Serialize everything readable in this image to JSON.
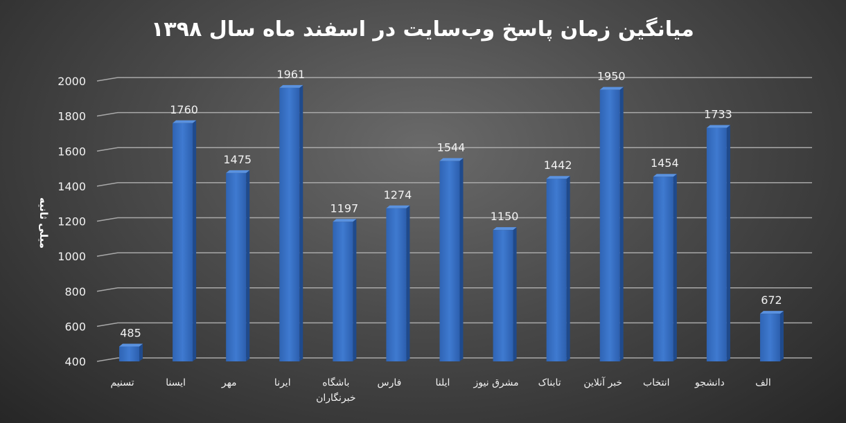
{
  "chart_data": {
    "type": "bar",
    "title": "میانگین زمان پاسخ وب‌سایت در اسفند ماه سال ۱۳۹۸",
    "xlabel": "",
    "ylabel": "میلی ثانیه",
    "ylim": [
      400,
      2000
    ],
    "yticks": [
      "400",
      "600",
      "800",
      "1000",
      "1200",
      "1400",
      "1600",
      "1800",
      "2000"
    ],
    "grid": true,
    "legend": "none",
    "bar_color": "#3a73c8",
    "categories": [
      [
        "تسنیم"
      ],
      [
        "ایسنا"
      ],
      [
        "مهر"
      ],
      [
        "ایرنا"
      ],
      [
        "باشگاه",
        "خبرنگاران"
      ],
      [
        "فارس"
      ],
      [
        "ایلنا"
      ],
      [
        "مشرق نیوز"
      ],
      [
        "تابناک"
      ],
      [
        "خبر آنلاین"
      ],
      [
        "انتخاب"
      ],
      [
        "دانشجو"
      ],
      [
        "الف"
      ]
    ],
    "values": [
      485,
      1760,
      1475,
      1961,
      1197,
      1274,
      1544,
      1150,
      1442,
      1950,
      1454,
      1733,
      672
    ]
  }
}
